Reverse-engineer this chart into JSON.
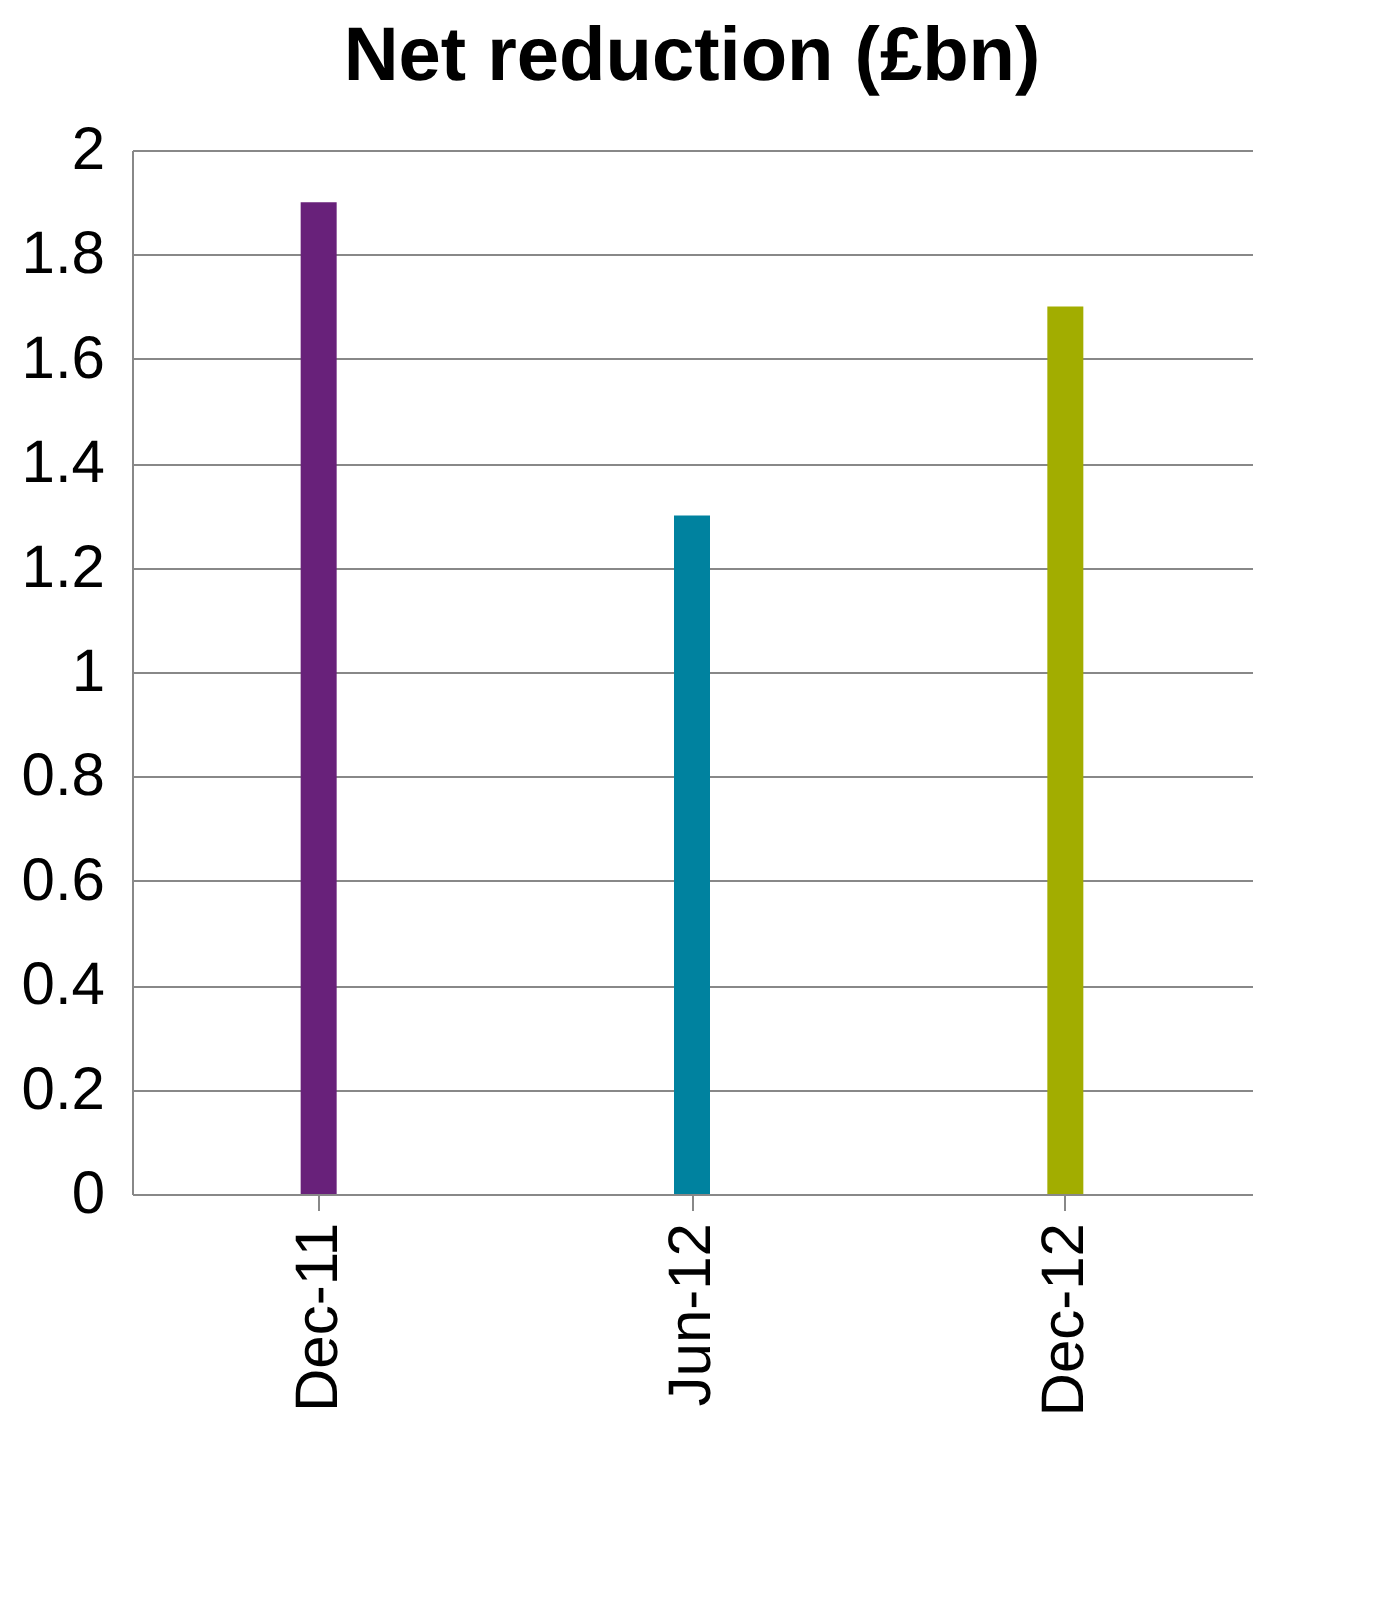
{
  "chart_data": {
    "type": "bar",
    "title": "Net reduction (£bn)",
    "categories": [
      "Dec-11",
      "Jun-12",
      "Dec-12"
    ],
    "values": [
      1.9,
      1.3,
      1.7
    ],
    "colors": [
      "#68217a",
      "#00829f",
      "#a2ad00"
    ],
    "ylim": [
      0,
      2
    ],
    "yticks": [
      0,
      0.2,
      0.4,
      0.6,
      0.8,
      1,
      1.2,
      1.4,
      1.6,
      1.8,
      2
    ],
    "grid": "y",
    "legend": false
  }
}
